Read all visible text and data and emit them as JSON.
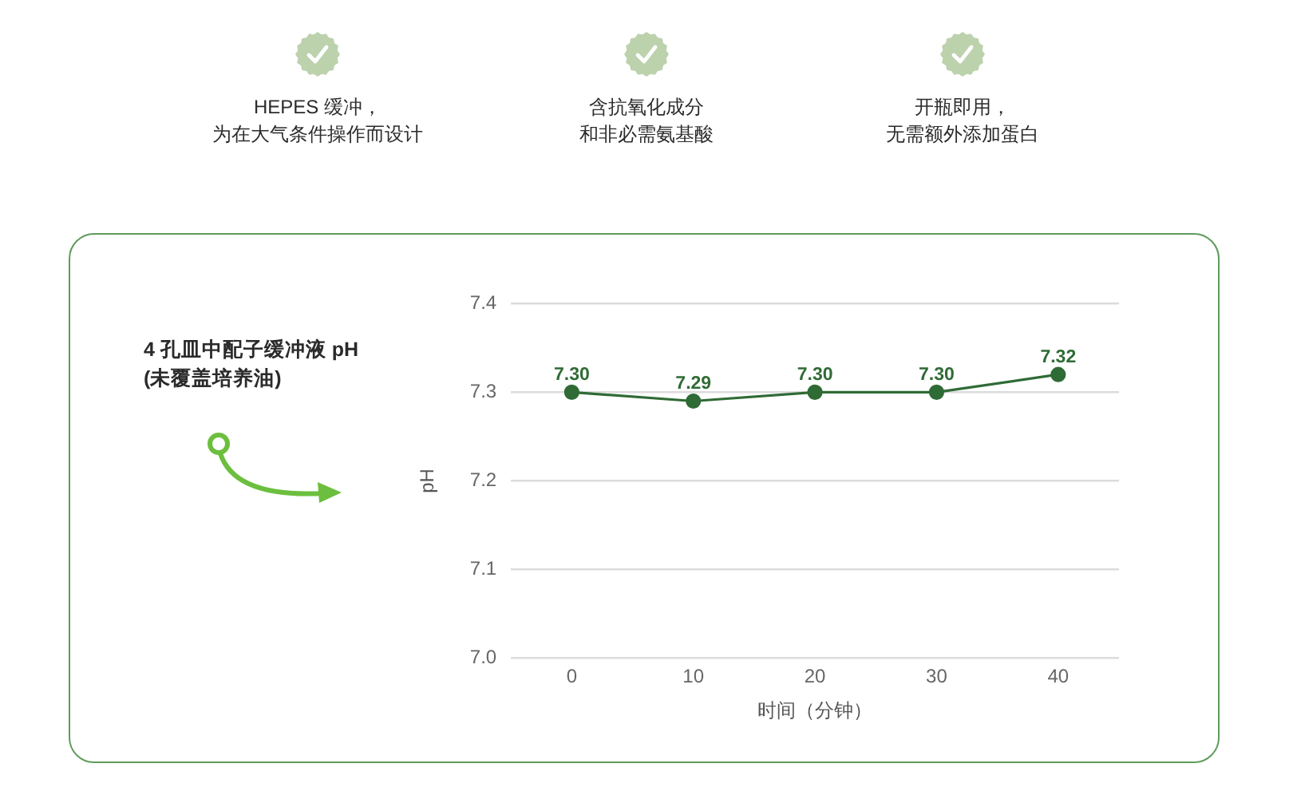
{
  "chart_data": {
    "type": "line",
    "title": "4 孔皿中配子缓冲液 pH (未覆盖培养油)",
    "annotations": [
      "HEPES 缓冲，为在大气条件操作而设计",
      "含抗氧化成分和非必需氨基酸",
      "开瓶即用，无需额外添加蛋白"
    ],
    "xlabel": "时间（分钟）",
    "ylabel": "pH",
    "categories": [
      "0",
      "10",
      "20",
      "30",
      "40"
    ],
    "series": [
      {
        "color": "#2f6b35",
        "values": [
          7.3,
          7.29,
          7.3,
          7.3,
          7.32
        ],
        "value_labels": [
          "7.30",
          "7.29",
          "7.30",
          "7.30",
          "7.32"
        ]
      }
    ],
    "ylim": [
      7.0,
      7.4
    ],
    "yticks": [
      {
        "value": 7.0,
        "label": "7.0"
      },
      7.1,
      7.2,
      7.3,
      7.4
    ],
    "grid": "y",
    "marker": "circle",
    "line_style": "solid"
  }
}
